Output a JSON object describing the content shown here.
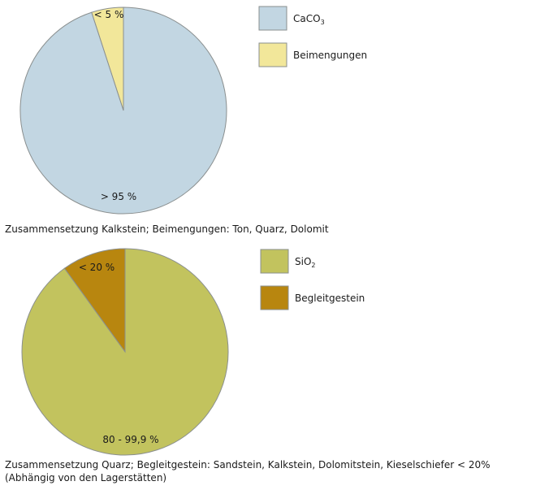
{
  "chart_data": [
    {
      "type": "pie",
      "slices": [
        {
          "name": "CaCO3",
          "legend": "CaCO",
          "legend_sub": "3",
          "value": 95,
          "label": "> 95 %",
          "color": "#c2d6e2"
        },
        {
          "name": "Beimengungen",
          "legend": "Beimengungen",
          "legend_sub": "",
          "value": 5,
          "label": "< 5 %",
          "color": "#f2e79a"
        }
      ],
      "caption": "Zusammensetzung Kalkstein; Beimengungen: Ton, Quarz, Dolomit",
      "legend_placement": "right"
    },
    {
      "type": "pie",
      "slices": [
        {
          "name": "SiO2",
          "legend": "SiO",
          "legend_sub": "2",
          "value": 90,
          "label": "80 - 99,9 %",
          "color": "#c2c35e"
        },
        {
          "name": "Begleitgestein",
          "legend": "Begleitgestein",
          "legend_sub": "",
          "value": 10,
          "label": "< 20 %",
          "color": "#b8860f"
        }
      ],
      "caption": "Zusammensetzung Quarz; Begleitgestein: Sandstein, Kalkstein, Dolomitstein, Kieselschiefer < 20%",
      "caption_line2": "(Abhängig von den Lagerstätten)",
      "legend_placement": "right"
    }
  ],
  "stroke_color": "#8a8f8f"
}
